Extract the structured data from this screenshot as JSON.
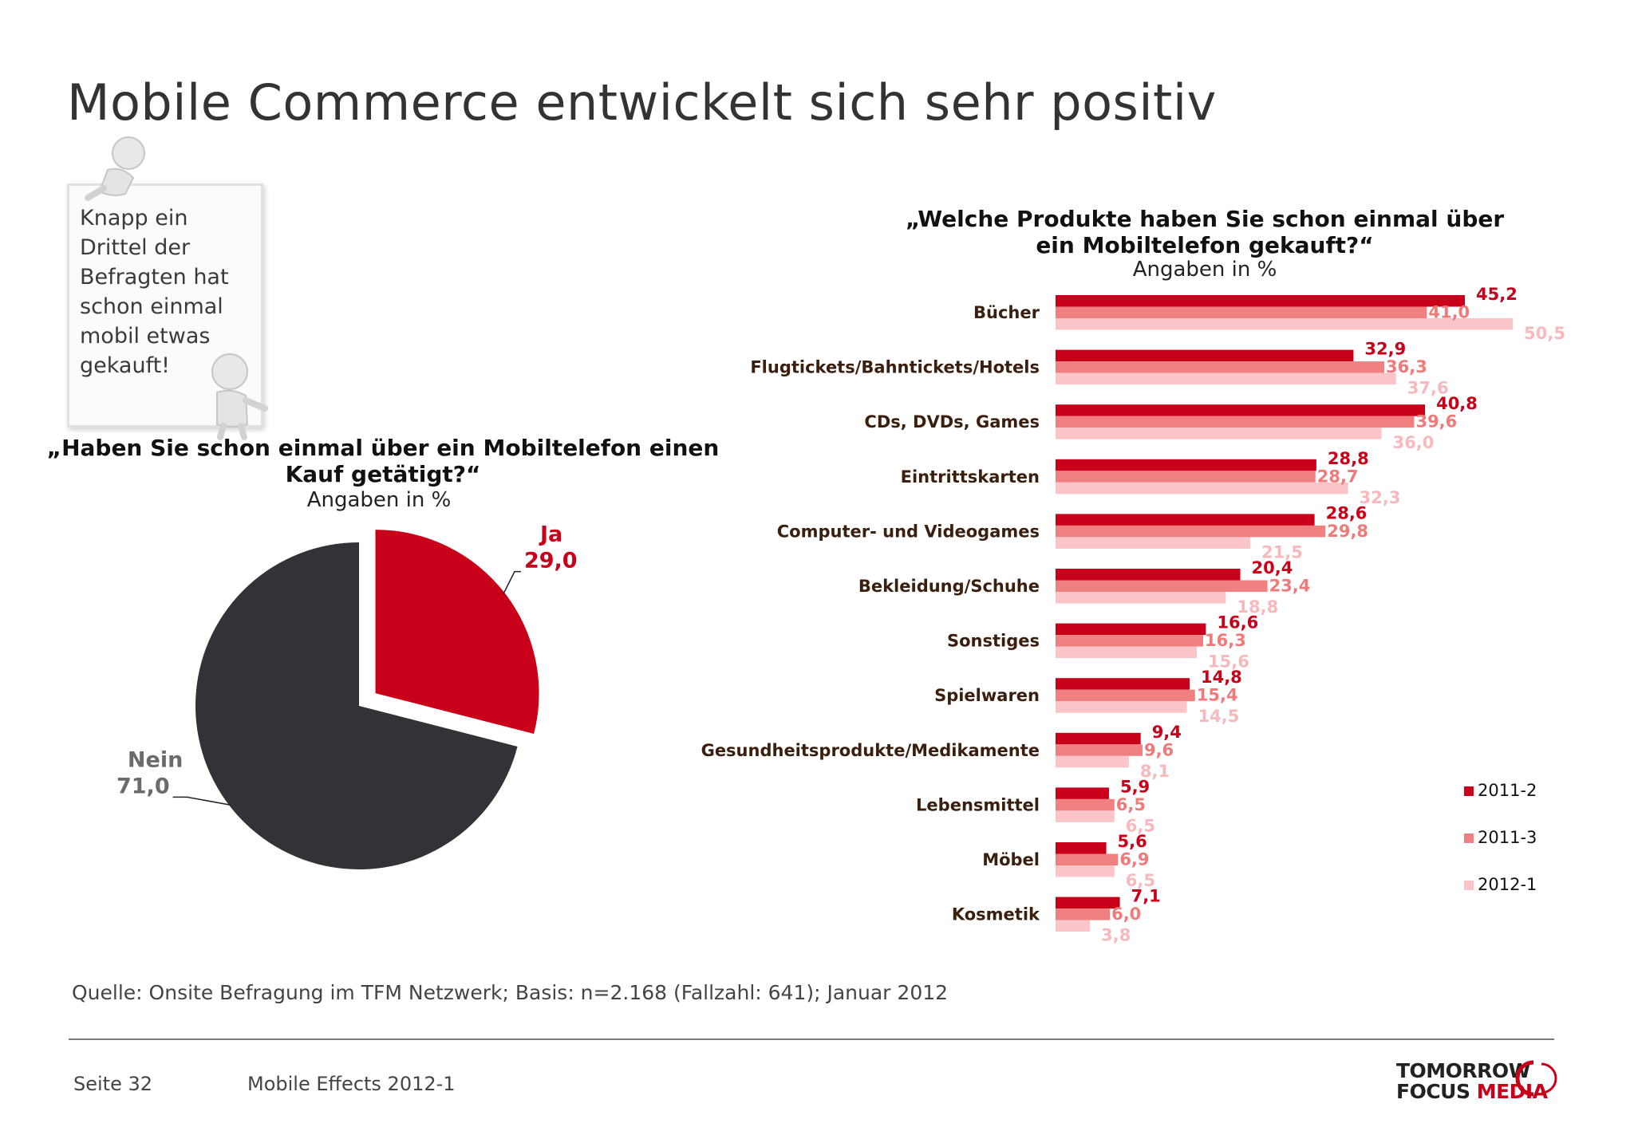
{
  "title": "Mobile Commerce entwickelt sich sehr positiv",
  "note": {
    "lines": [
      "Knapp ein",
      "Drittel der",
      "Befragten hat",
      "schon einmal",
      "mobil etwas",
      "gekauft!"
    ]
  },
  "source": "Quelle: Onsite Befragung im TFM Netzwerk; Basis: n=2.168 (Fallzahl: 641); Januar 2012",
  "footer": {
    "page": "Seite 32",
    "study": "Mobile Effects 2012-1",
    "logo_line1": "TOMORROW",
    "logo_line2_a": "FOCUS ",
    "logo_line2_b": "MEDIA"
  },
  "colors": {
    "dark_red": "#c8001a",
    "mid_red": "#f08080",
    "light_pink": "#fac4c8",
    "pie_dark": "#333237",
    "category_text": "#3a1f0f"
  },
  "chart_data": [
    {
      "type": "pie",
      "title": "„Haben Sie schon einmal über ein Mobiltelefon einen Kauf getätigt?“",
      "subtitle": "Angaben in %",
      "slices": [
        {
          "label": "Ja",
          "value": 29.0,
          "value_label": "29,0",
          "color": "#c8001a",
          "exploded": true
        },
        {
          "label": "Nein",
          "value": 71.0,
          "value_label": "71,0",
          "color": "#333237",
          "exploded": false
        }
      ]
    },
    {
      "type": "bar",
      "orientation": "horizontal",
      "title": "„Welche Produkte haben Sie schon einmal über ein Mobiltelefon gekauft?“",
      "subtitle": "Angaben in %",
      "legend_position": "right",
      "categories": [
        "Bücher",
        "Flugtickets/Bahntickets/Hotels",
        "CDs, DVDs, Games",
        "Eintrittskarten",
        "Computer- und Videogames",
        "Bekleidung/Schuhe",
        "Sonstiges",
        "Spielwaren",
        "Gesundheitsprodukte/Medikamente",
        "Lebensmittel",
        "Möbel",
        "Kosmetik"
      ],
      "series": [
        {
          "name": "2011-2",
          "color": "#c8001a",
          "values": [
            45.2,
            32.9,
            40.8,
            28.8,
            28.6,
            20.4,
            16.6,
            14.8,
            9.4,
            5.9,
            5.6,
            7.1
          ],
          "labels": [
            "45,2",
            "32,9",
            "40,8",
            "28,8",
            "28,6",
            "20,4",
            "16,6",
            "14,8",
            "9,4",
            "5,9",
            "5,6",
            "7,1"
          ]
        },
        {
          "name": "2011-3",
          "color": "#f08080",
          "values": [
            41.0,
            36.3,
            39.6,
            28.7,
            29.8,
            23.4,
            16.3,
            15.4,
            9.6,
            6.5,
            6.9,
            6.0
          ],
          "labels": [
            "41,0",
            "36,3",
            "39,6",
            "28,7",
            "29,8",
            "23,4",
            "16,3",
            "15,4",
            "9,6",
            "6,5",
            "6,9",
            "6,0"
          ]
        },
        {
          "name": "2012-1",
          "color": "#fac4c8",
          "values": [
            50.5,
            37.6,
            36.0,
            32.3,
            21.5,
            18.8,
            15.6,
            14.5,
            8.1,
            6.5,
            6.5,
            3.8
          ],
          "labels": [
            "50,5",
            "37,6",
            "36,0",
            "32,3",
            "21,5",
            "18,8",
            "15,6",
            "14,5",
            "8,1",
            "6,5",
            "6,5",
            "3,8"
          ]
        }
      ]
    }
  ]
}
